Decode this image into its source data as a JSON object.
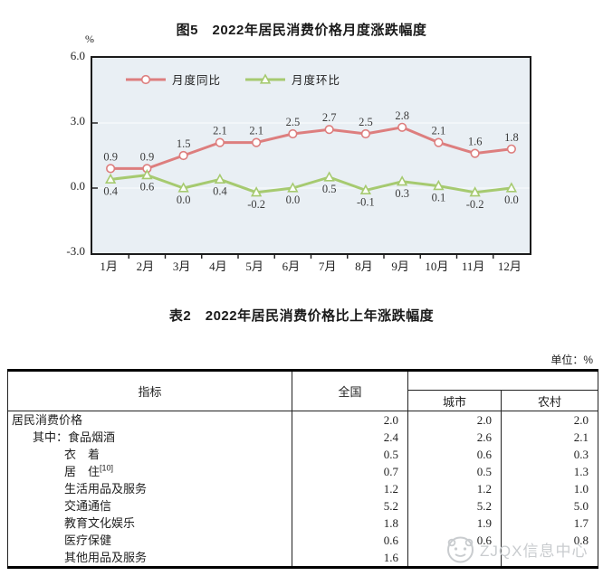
{
  "figure": {
    "title": "图5　2022年居民消费价格月度涨跌幅度",
    "percent_label": "%",
    "colors": {
      "plot_background": "#e9eff4",
      "plot_border": "#1b1b1b",
      "yoy_line": "#dd7e7e",
      "mom_line": "#a6ca70",
      "label_text": "#3b3b3b"
    }
  },
  "chart_data": {
    "type": "line",
    "title": "图5　2022年居民消费价格月度涨跌幅度",
    "categories": [
      "1月",
      "2月",
      "3月",
      "4月",
      "5月",
      "6月",
      "7月",
      "8月",
      "9月",
      "10月",
      "11月",
      "12月"
    ],
    "series": [
      {
        "name": "月度同比",
        "marker": "circle",
        "color": "#dd7e7e",
        "values": [
          0.9,
          0.9,
          1.5,
          2.1,
          2.1,
          2.5,
          2.7,
          2.5,
          2.8,
          2.1,
          1.6,
          1.8
        ]
      },
      {
        "name": "月度环比",
        "marker": "triangle",
        "color": "#a6ca70",
        "values": [
          0.4,
          0.6,
          0.0,
          0.4,
          -0.2,
          0.0,
          0.5,
          -0.1,
          0.3,
          0.1,
          -0.2,
          0.0
        ]
      }
    ],
    "ylabel": "%",
    "ylim": [
      -3.0,
      6.0
    ],
    "yticks": [
      "6.0",
      "3.0",
      "0.0",
      "-3.0"
    ],
    "grid": "faint horizontal at 3.0 and 0.0",
    "legend_position": "top-left inside plot",
    "data_labels": "one decimal, 同比 above points, 环比 below points"
  },
  "table": {
    "title": "表2　2022年居民消费价格比上年涨跌幅度",
    "unit_label": "单位：%",
    "headers": {
      "indicator": "指标",
      "national": "全国",
      "city": "城市",
      "rural": "农村"
    },
    "rows": [
      {
        "indicator": "居民消费价格",
        "sup": "",
        "indent": 0,
        "national": "2.0",
        "city": "2.0",
        "rural": "2.0"
      },
      {
        "indicator": "其中：食品烟酒",
        "sup": "",
        "indent": 1,
        "national": "2.4",
        "city": "2.6",
        "rural": "2.1"
      },
      {
        "indicator": "衣　着",
        "sup": "",
        "indent": 2,
        "national": "0.5",
        "city": "0.6",
        "rural": "0.3"
      },
      {
        "indicator": "居　住",
        "sup": "[10]",
        "indent": 2,
        "national": "0.7",
        "city": "0.5",
        "rural": "1.3"
      },
      {
        "indicator": "生活用品及服务",
        "sup": "",
        "indent": 2,
        "national": "1.2",
        "city": "1.2",
        "rural": "1.0"
      },
      {
        "indicator": "交通通信",
        "sup": "",
        "indent": 2,
        "national": "5.2",
        "city": "5.2",
        "rural": "5.0"
      },
      {
        "indicator": "教育文化娱乐",
        "sup": "",
        "indent": 2,
        "national": "1.8",
        "city": "1.9",
        "rural": "1.7"
      },
      {
        "indicator": "医疗保健",
        "sup": "",
        "indent": 2,
        "national": "0.6",
        "city": "0.6",
        "rural": "0.8"
      },
      {
        "indicator": "其他用品及服务",
        "sup": "",
        "indent": 2,
        "national": "1.6",
        "city": "",
        "rural": ""
      }
    ]
  },
  "watermark": {
    "text": "ZJQX信息中心",
    "icon": "round-logo",
    "color": "#c7cacd"
  }
}
